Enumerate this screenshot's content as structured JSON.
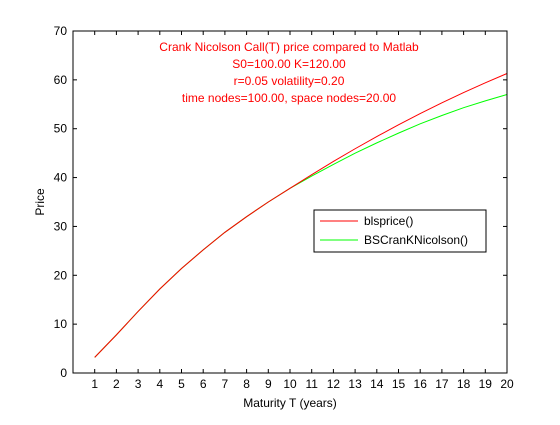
{
  "chart_data": {
    "type": "line",
    "title_lines": [
      "Crank Nicolson Call(T) price compared to Matlab",
      "S0=100.00 K=120.00",
      "r=0.05 volatility=0.20",
      "time nodes=100.00, space nodes=20.00"
    ],
    "xlabel": "Maturity T (years)",
    "ylabel": "Price",
    "xlim": [
      0,
      20
    ],
    "ylim": [
      0,
      70
    ],
    "xticks": [
      1,
      2,
      3,
      4,
      5,
      6,
      7,
      8,
      9,
      10,
      11,
      12,
      13,
      14,
      15,
      16,
      17,
      18,
      19,
      20
    ],
    "yticks": [
      0,
      10,
      20,
      30,
      40,
      50,
      60,
      70
    ],
    "grid": false,
    "legend_position": "center-right",
    "colors": {
      "title": "#ff0000",
      "axis": "#000000"
    },
    "series": [
      {
        "name": "blsprice()",
        "color": "#ff0000",
        "x": [
          1,
          2,
          3,
          4,
          5,
          6,
          7,
          8,
          9,
          10,
          11,
          12,
          13,
          14,
          15,
          16,
          17,
          18,
          19,
          20
        ],
        "y": [
          3.2,
          7.8,
          12.6,
          17.2,
          21.4,
          25.2,
          28.8,
          32.0,
          35.0,
          37.8,
          40.6,
          43.3,
          45.9,
          48.4,
          50.8,
          53.1,
          55.3,
          57.4,
          59.4,
          61.3
        ]
      },
      {
        "name": "BSCranKNicolson()",
        "color": "#00ff00",
        "x": [
          1,
          2,
          3,
          4,
          5,
          6,
          7,
          8,
          9,
          10,
          11,
          12,
          13,
          14,
          15,
          16,
          17,
          18,
          19,
          20
        ],
        "y": [
          3.2,
          7.8,
          12.6,
          17.2,
          21.4,
          25.2,
          28.8,
          32.0,
          35.0,
          37.8,
          40.3,
          42.7,
          45.0,
          47.1,
          49.1,
          51.0,
          52.7,
          54.3,
          55.7,
          57.0
        ]
      }
    ]
  }
}
